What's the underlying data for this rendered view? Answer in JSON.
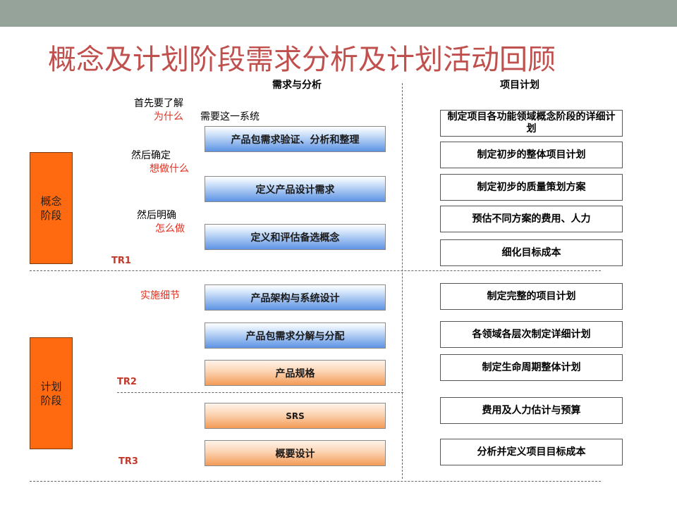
{
  "title": "概念及计划阶段需求分析及计划活动回顾",
  "columns": {
    "left": "需求与分析",
    "right": "项目计划"
  },
  "phases": [
    "概念\n阶段",
    "计划\n阶段"
  ],
  "notes": {
    "first": "首先要了解",
    "why": "为什么",
    "need": "需要这一系统",
    "then_confirm": "然后确定",
    "what": "想做什么",
    "then_clarify": "然后明确",
    "how": "怎么做",
    "detail": "实施细节"
  },
  "tr": [
    "TR1",
    "TR2",
    "TR3"
  ],
  "steps": [
    "产品包需求验证、分析和整理",
    "定义产品设计需求",
    "定义和评估备选概念",
    "产品架构与系统设计",
    "产品包需求分解与分配",
    "产品规格",
    "SRS",
    "概要设计"
  ],
  "plans": [
    "制定项目各功能领域概念阶段的详细计划",
    "制定初步的整体项目计划",
    "制定初步的质量策划方案",
    "预估不同方案的费用、人力",
    "细化目标成本",
    "制定完整的项目计划",
    "各领域各层次制定详细计划",
    "制定生命周期整体计划",
    "费用及人力估计与预算",
    "分析并定义项目目标成本"
  ],
  "colors": {
    "topbar": "#95a39a",
    "title": "#c0504d",
    "phase": "#ff6a10",
    "note_red": "#e03020",
    "tr": "#c0392b"
  }
}
